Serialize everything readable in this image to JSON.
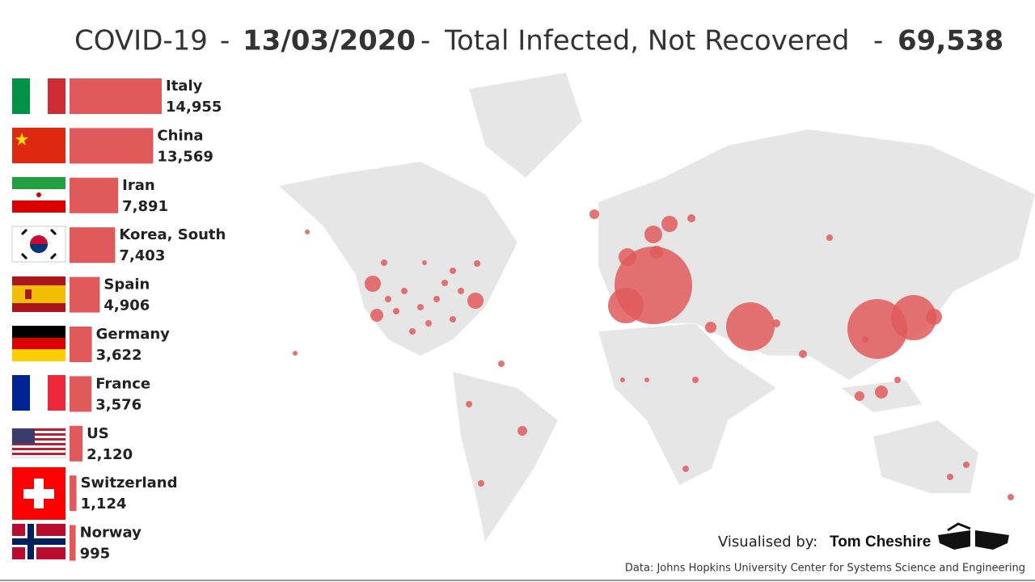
{
  "chart_data": {
    "type": "bar",
    "orientation": "horizontal",
    "title": "COVID-19",
    "separator": "-",
    "date": "13/03/2020",
    "subtitle": "Total Infected, Not Recovered",
    "total": {
      "value": 69538,
      "label": "69,538"
    },
    "categories": [
      "Italy",
      "China",
      "Iran",
      "Korea, South",
      "Spain",
      "Germany",
      "France",
      "US",
      "Switzerland",
      "Norway"
    ],
    "values": [
      14955,
      13569,
      7891,
      7403,
      4906,
      3622,
      3576,
      2120,
      1124,
      995
    ],
    "value_labels": [
      "14,955",
      "13,569",
      "7,891",
      "7,403",
      "4,906",
      "3,622",
      "3,576",
      "2,120",
      "1,124",
      "995"
    ],
    "color": "#e05a5c",
    "credit_label": "Visualised by:",
    "credit_name": "Tom Cheshire",
    "source": "Data: Johns Hopkins University Center for Systems Science and Engineering"
  }
}
